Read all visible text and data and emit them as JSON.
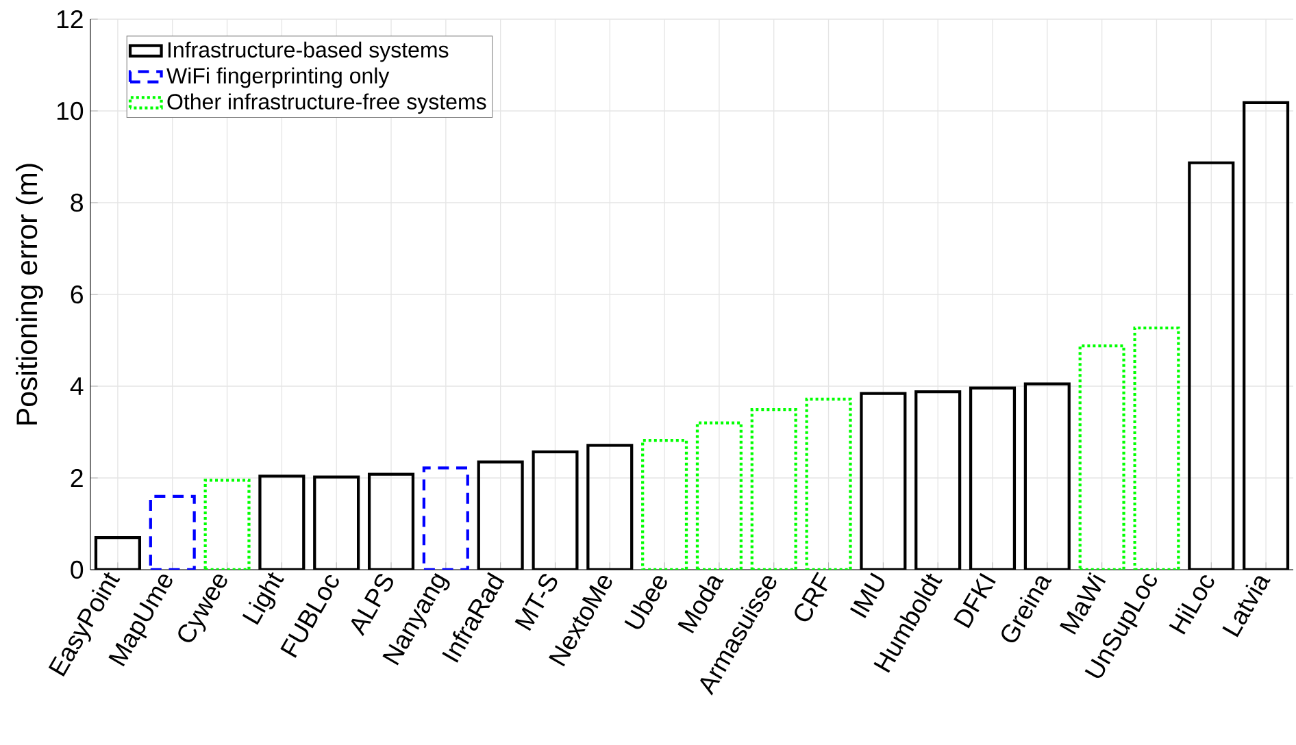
{
  "chart_data": {
    "type": "bar",
    "ylabel": "Positioning error (m)",
    "categories": [
      "EasyPoint",
      "MapUme",
      "Cywee",
      "Light",
      "FUBLoc",
      "ALPS",
      "Nanyang",
      "InfraRad",
      "MT-S",
      "NextoMe",
      "Ubee",
      "Moda",
      "Armasuisse",
      "CRF",
      "IMU",
      "Humboldt",
      "DFKI",
      "Greina",
      "MaWi",
      "UnSupLoc",
      "HiLoc",
      "Latvia"
    ],
    "series": [
      {
        "name": "Infrastructure-based systems",
        "color": "#000000",
        "line_style": "solid",
        "values": [
          0.7,
          null,
          null,
          2.04,
          2.02,
          2.08,
          null,
          2.35,
          2.57,
          2.71,
          null,
          null,
          null,
          null,
          3.84,
          3.88,
          3.96,
          4.05,
          null,
          null,
          8.87,
          10.18
        ]
      },
      {
        "name": "WiFi fingerprinting only",
        "color": "#0000ff",
        "line_style": "dashed",
        "values": [
          null,
          1.6,
          null,
          null,
          null,
          null,
          2.22,
          null,
          null,
          null,
          null,
          null,
          null,
          null,
          null,
          null,
          null,
          null,
          null,
          null,
          null,
          null
        ]
      },
      {
        "name": "Other infrastructure-free systems",
        "color": "#00ff00",
        "line_style": "dotted",
        "values": [
          null,
          null,
          1.95,
          null,
          null,
          null,
          null,
          null,
          null,
          null,
          2.82,
          3.2,
          3.49,
          3.72,
          null,
          null,
          null,
          null,
          4.88,
          5.27,
          null,
          null
        ]
      }
    ],
    "ylim": [
      0,
      12
    ],
    "yticks": [
      0,
      2,
      4,
      6,
      8,
      10,
      12
    ],
    "grid": true,
    "legend": "top left"
  }
}
